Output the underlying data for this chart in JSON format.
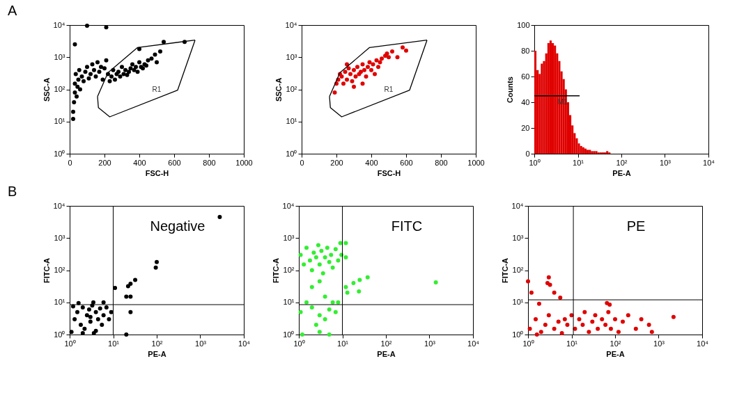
{
  "chart_data": [
    {
      "type": "scatter",
      "title": "A",
      "xlabel": "FSC-H",
      "ylabel": "SSC-A",
      "log": "y",
      "xlim": [
        0,
        1000
      ],
      "ylim": [
        1,
        10000
      ],
      "xticks": [
        0,
        200,
        400,
        600,
        800,
        1000
      ],
      "yticks": [
        {
          "value": 1,
          "label": "10⁰"
        },
        {
          "value": 10,
          "label": "10¹"
        },
        {
          "value": 100,
          "label": "10²"
        },
        {
          "value": 1000,
          "label": "10³"
        },
        {
          "value": 10000,
          "label": "10⁴"
        }
      ],
      "series": [
        {
          "color": "#000000",
          "marker": "circle",
          "x": [
            20,
            25,
            30,
            30,
            35,
            40,
            45,
            50,
            55,
            60,
            70,
            80,
            90,
            100,
            110,
            120,
            130,
            140,
            150,
            160,
            170,
            180,
            190,
            200,
            210,
            220,
            230,
            240,
            250,
            260,
            270,
            280,
            290,
            300,
            310,
            320,
            330,
            340,
            350,
            360,
            370,
            380,
            390,
            400,
            410,
            420,
            430,
            440,
            450,
            470,
            490,
            500,
            520,
            540,
            660,
            100,
            210,
            30,
            400,
            20
          ],
          "values": [
            20,
            40,
            80,
            150,
            300,
            60,
            120,
            200,
            400,
            100,
            250,
            180,
            350,
            500,
            220,
            300,
            600,
            400,
            250,
            700,
            350,
            500,
            200,
            450,
            800,
            300,
            180,
            250,
            400,
            200,
            300,
            350,
            250,
            500,
            300,
            400,
            280,
            350,
            450,
            600,
            400,
            500,
            350,
            700,
            500,
            450,
            600,
            550,
            800,
            900,
            1200,
            700,
            1500,
            3000,
            3000,
            9500,
            8500,
            2500,
            1800,
            12
          ]
        },
        {
          "type": "line",
          "color": "#000000",
          "x": [
            160,
            220,
            390,
            720
          ],
          "values": [
            60,
            330,
            2000,
            3400
          ]
        },
        {
          "type": "line",
          "color": "#000000",
          "x": [
            160,
            165,
            230,
            620,
            720
          ],
          "values": [
            60,
            27,
            14,
            95,
            3400
          ]
        }
      ],
      "annotations": [
        "R1"
      ]
    },
    {
      "type": "scatter",
      "xlabel": "FSC-H",
      "ylabel": "SSC-A",
      "log": "y",
      "xlim": [
        0,
        1000
      ],
      "ylim": [
        1,
        10000
      ],
      "xticks": [
        0,
        200,
        400,
        600,
        800,
        1000
      ],
      "yticks": [
        {
          "value": 1,
          "label": "10⁰"
        },
        {
          "value": 10,
          "label": "10¹"
        },
        {
          "value": 100,
          "label": "10²"
        },
        {
          "value": 1000,
          "label": "10³"
        },
        {
          "value": 10000,
          "label": "10⁴"
        }
      ],
      "series": [
        {
          "color": "#e00000",
          "marker": "circle",
          "x": [
            190,
            200,
            210,
            220,
            230,
            240,
            250,
            260,
            270,
            280,
            290,
            300,
            310,
            320,
            330,
            340,
            350,
            360,
            370,
            380,
            390,
            400,
            410,
            420,
            430,
            440,
            450,
            460,
            480,
            490,
            500,
            520,
            550,
            580,
            600,
            300,
            260,
            350
          ],
          "values": [
            80,
            150,
            200,
            300,
            250,
            150,
            350,
            200,
            450,
            300,
            180,
            400,
            250,
            500,
            300,
            350,
            600,
            400,
            250,
            500,
            700,
            400,
            600,
            300,
            800,
            500,
            700,
            900,
            1100,
            1300,
            1000,
            1500,
            1000,
            2000,
            1600,
            120,
            600,
            150
          ]
        },
        {
          "type": "line",
          "color": "#000000",
          "x": [
            160,
            220,
            390,
            720
          ],
          "values": [
            60,
            330,
            2000,
            3400
          ]
        },
        {
          "type": "line",
          "color": "#000000",
          "x": [
            160,
            165,
            230,
            620,
            720
          ],
          "values": [
            60,
            27,
            14,
            95,
            3400
          ]
        }
      ],
      "annotations": [
        "R1"
      ]
    },
    {
      "type": "histogram",
      "xlabel": "PE-A",
      "ylabel": "Counts",
      "log": "x",
      "color": "#e00000",
      "xlim": [
        1,
        10000
      ],
      "ylim": [
        0,
        100
      ],
      "xticks": [
        {
          "value": 1,
          "label": "10⁰"
        },
        {
          "value": 10,
          "label": "10¹"
        },
        {
          "value": 100,
          "label": "10²"
        },
        {
          "value": 1000,
          "label": "10³"
        },
        {
          "value": 10000,
          "label": "10⁴"
        }
      ],
      "yticks": [
        0,
        20,
        40,
        60,
        80,
        100
      ],
      "bins": [
        1,
        1.12,
        1.26,
        1.41,
        1.58,
        1.78,
        2,
        2.24,
        2.51,
        2.82,
        3.16,
        3.55,
        3.98,
        4.47,
        5.01,
        5.62,
        6.31,
        7.08,
        7.94,
        8.91,
        10,
        11.2,
        12.6,
        14.1,
        15.8,
        17.8,
        20,
        22.4,
        25.1,
        28.2,
        31.6,
        35.5,
        39.8,
        44.7,
        50.1,
        56.2,
        63.1
      ],
      "values": [
        80,
        65,
        62,
        70,
        72,
        78,
        86,
        88,
        86,
        84,
        78,
        72,
        64,
        58,
        50,
        40,
        30,
        22,
        16,
        12,
        8,
        6,
        5,
        4,
        3,
        3,
        2,
        2,
        2,
        1,
        1,
        1,
        1,
        2,
        1,
        0
      ],
      "series": [
        {
          "type": "line",
          "color": "#000000",
          "x": [
            1,
            11
          ],
          "values": [
            45,
            45
          ]
        }
      ],
      "annotations": [
        {
          "text": "M1",
          "x": 4.5,
          "y": 45
        }
      ]
    },
    {
      "type": "scatter",
      "title": "B",
      "xlabel": "PE-A",
      "ylabel": "FITC-A",
      "log": "xy",
      "marker": "circle",
      "xlim": [
        1,
        10000
      ],
      "ylim": [
        1,
        10000
      ],
      "xticks": [
        {
          "value": 1,
          "label": "10⁰"
        },
        {
          "value": 10,
          "label": "10¹"
        },
        {
          "value": 100,
          "label": "10²"
        },
        {
          "value": 1000,
          "label": "10³"
        },
        {
          "value": 10000,
          "label": "10⁴"
        }
      ],
      "yticks": [
        {
          "value": 1,
          "label": "10⁰"
        },
        {
          "value": 10,
          "label": "10¹"
        },
        {
          "value": 100,
          "label": "10²"
        },
        {
          "value": 1000,
          "label": "10³"
        },
        {
          "value": 10000,
          "label": "10⁴"
        }
      ],
      "series": [
        {
          "color": "#000000",
          "x": [
            1.1,
            1.3,
            1.5,
            1.8,
            2,
            2.2,
            2.5,
            2.8,
            3,
            3.3,
            3.6,
            4,
            4.5,
            5,
            5.5,
            6,
            7,
            8,
            9,
            1.2,
            2,
            3,
            4,
            1.6,
            3.5,
            6,
            25,
            20,
            25,
            22,
            25,
            32,
            95,
            100,
            2800,
            11,
            20
          ],
          "values": [
            1.2,
            3,
            5,
            2,
            7,
            1.5,
            4,
            6,
            2.5,
            8,
            1.1,
            5,
            3,
            6.5,
            2,
            4,
            7,
            3,
            5,
            7.5,
            1.1,
            3.5,
            1.3,
            9.5,
            10,
            10,
            5,
            15,
            15,
            32,
            38,
            50,
            120,
            180,
            4500,
            28,
            1
          ]
        }
      ],
      "ref_lines": [
        {
          "axis": "x",
          "value": 10
        },
        {
          "axis": "y",
          "value": 8.5
        }
      ],
      "annotations": [
        "Negative"
      ]
    },
    {
      "type": "scatter",
      "xlabel": "PE-A",
      "ylabel": "FITC-A",
      "log": "xy",
      "marker": "circle",
      "xlim": [
        1,
        10000
      ],
      "ylim": [
        1,
        10000
      ],
      "xticks": [
        {
          "value": 1,
          "label": "10⁰"
        },
        {
          "value": 10,
          "label": "10¹"
        },
        {
          "value": 100,
          "label": "10²"
        },
        {
          "value": 1000,
          "label": "10³"
        },
        {
          "value": 10000,
          "label": "10⁴"
        }
      ],
      "yticks": [
        {
          "value": 1,
          "label": "10⁰"
        },
        {
          "value": 10,
          "label": "10¹"
        },
        {
          "value": 100,
          "label": "10²"
        },
        {
          "value": 1000,
          "label": "10³"
        },
        {
          "value": 10000,
          "label": "10⁴"
        }
      ],
      "series": [
        {
          "color": "#33ee33",
          "x": [
            1.1,
            1.3,
            1.5,
            1.8,
            2,
            2.2,
            2.5,
            2.8,
            3,
            3.3,
            3.6,
            4,
            4.5,
            5,
            5.5,
            6,
            7,
            8,
            9,
            9.5,
            12,
            12,
            2,
            3,
            1.5,
            2,
            3,
            4,
            5,
            6,
            2.5,
            3,
            1.2,
            5,
            4,
            1.1,
            12,
            13,
            24,
            18,
            25,
            38,
            1400,
            7,
            8
          ],
          "values": [
            300,
            150,
            500,
            200,
            100,
            350,
            250,
            600,
            150,
            400,
            80,
            250,
            500,
            180,
            300,
            120,
            450,
            200,
            700,
            300,
            250,
            700,
            30,
            45,
            10,
            7,
            4,
            3,
            6,
            10,
            2,
            1.2,
            1,
            1,
            15,
            5,
            30,
            20,
            22,
            40,
            50,
            60,
            42,
            5,
            10
          ]
        }
      ],
      "ref_lines": [
        {
          "axis": "x",
          "value": 10
        },
        {
          "axis": "y",
          "value": 8.5
        }
      ],
      "annotations": [
        "FITC"
      ]
    },
    {
      "type": "scatter",
      "xlabel": "PE-A",
      "ylabel": "FITC-A",
      "log": "xy",
      "marker": "circle",
      "xlim": [
        1,
        10000
      ],
      "ylim": [
        1,
        10000
      ],
      "xticks": [
        {
          "value": 1,
          "label": "10⁰"
        },
        {
          "value": 10,
          "label": "10¹"
        },
        {
          "value": 100,
          "label": "10²"
        },
        {
          "value": 1000,
          "label": "10³"
        },
        {
          "value": 10000,
          "label": "10⁴"
        }
      ],
      "yticks": [
        {
          "value": 1,
          "label": "10⁰"
        },
        {
          "value": 10,
          "label": "10¹"
        },
        {
          "value": 100,
          "label": "10²"
        },
        {
          "value": 1000,
          "label": "10³"
        },
        {
          "value": 10000,
          "label": "10⁴"
        }
      ],
      "series": [
        {
          "color": "#e00000",
          "x": [
            1.1,
            1.5,
            2,
            2.5,
            3,
            4,
            5,
            6,
            7,
            8,
            10,
            12,
            15,
            18,
            20,
            25,
            30,
            35,
            40,
            50,
            60,
            70,
            80,
            100,
            120,
            150,
            200,
            300,
            400,
            600,
            700,
            2200,
            65,
            75,
            1.8,
            1.2,
            1,
            3,
            2.8,
            3.2,
            4,
            5.5,
            1.6
          ],
          "values": [
            1.5,
            3,
            1.2,
            2,
            4,
            1.5,
            2.5,
            1.1,
            3,
            2,
            4,
            1.5,
            3,
            2,
            5,
            1.2,
            2.5,
            4,
            1.5,
            3,
            2,
            5,
            1.5,
            3,
            1.2,
            2.5,
            4,
            1.5,
            3,
            2,
            1.2,
            3.5,
            9.5,
            8.5,
            9,
            20,
            45,
            60,
            40,
            35,
            20,
            14,
            1
          ]
        }
      ],
      "ref_lines": [
        {
          "axis": "x",
          "value": 11
        },
        {
          "axis": "y",
          "value": 12
        }
      ],
      "annotations": [
        "PE"
      ]
    }
  ]
}
